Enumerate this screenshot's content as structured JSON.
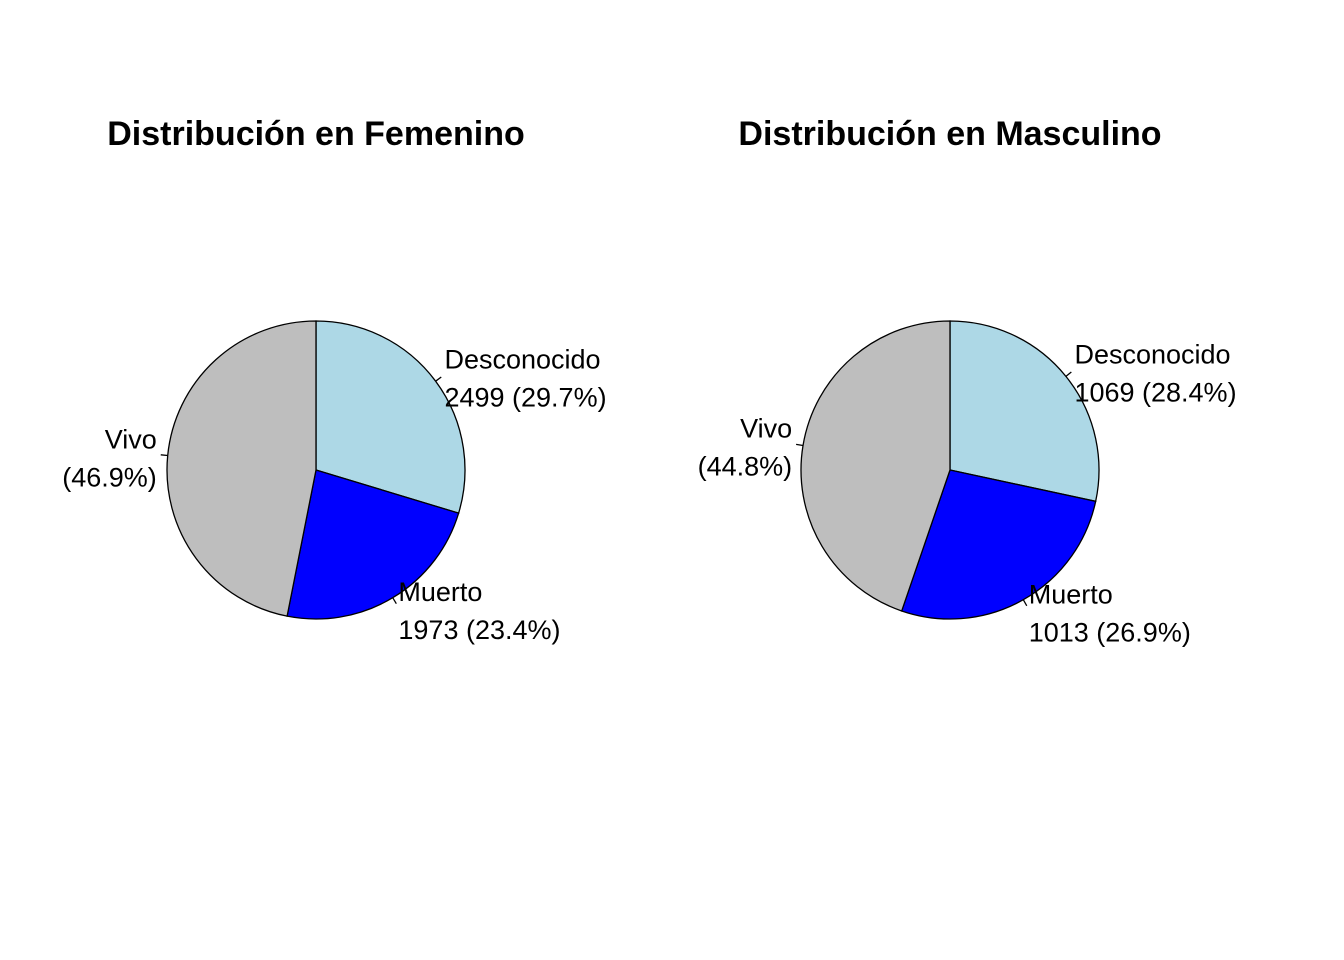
{
  "chart_data": [
    {
      "type": "pie",
      "title": "Distribución en Femenino",
      "slices": [
        {
          "label": "Desconocido",
          "value": 2499,
          "value_text": "2499",
          "percent": 29.7,
          "color": "#ADD8E6"
        },
        {
          "label": "Muerto",
          "value": 1973,
          "value_text": "1973",
          "percent": 23.4,
          "color": "#0000FF"
        },
        {
          "label": "Vivo",
          "value": 3949,
          "value_text": "",
          "percent": 46.9,
          "color": "#BEBEBE"
        }
      ]
    },
    {
      "type": "pie",
      "title": "Distribución en Masculino",
      "slices": [
        {
          "label": "Desconocido",
          "value": 1069,
          "value_text": "1069",
          "percent": 28.4,
          "color": "#ADD8E6"
        },
        {
          "label": "Muerto",
          "value": 1013,
          "value_text": "1013",
          "percent": 26.9,
          "color": "#0000FF"
        },
        {
          "label": "Vivo",
          "value": 1686,
          "value_text": "",
          "percent": 44.8,
          "color": "#BEBEBE"
        }
      ]
    }
  ]
}
